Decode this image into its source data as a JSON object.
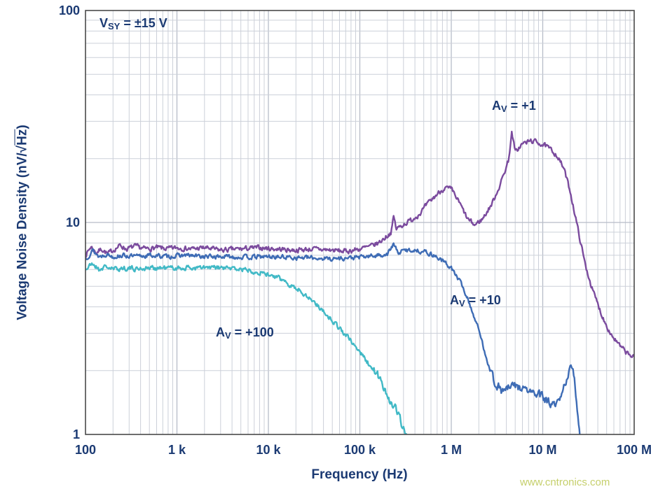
{
  "labels": {
    "supply": {
      "main": "V",
      "sub": "SY",
      "rest": " = ±15 V"
    },
    "av1": {
      "main": "A",
      "sub": "V",
      "rest": " = +1"
    },
    "av10": {
      "main": "A",
      "sub": "V",
      "rest": " = +10"
    },
    "av100": {
      "main": "A",
      "sub": "V",
      "rest": " = +100"
    },
    "ylabel": {
      "pre": "Voltage Noise Density (nV/√",
      "over": "Hz",
      "post": ")"
    },
    "xlabel": "Frequency (Hz)",
    "watermark": "www.cntronics.com"
  },
  "colors": {
    "axis_text": "#1b3a73",
    "grid_minor": "#ccd0d9",
    "grid_major": "#b7bcc8",
    "frame": "#4a4a4a",
    "watermark": "#c5cf6b",
    "series_av1": "#7b4b9e",
    "series_av10": "#3e6cb5",
    "series_av100": "#41b9c6"
  },
  "chart_data": {
    "type": "line",
    "title": "",
    "xlabel": "Frequency (Hz)",
    "ylabel": "Voltage Noise Density (nV/√Hz)",
    "annotation": "VSY = ±15 V",
    "x_scale": "log",
    "y_scale": "log",
    "xlim": [
      100,
      100000000
    ],
    "ylim": [
      1,
      100
    ],
    "grid": true,
    "legend": "inline-labels",
    "x_ticks": [
      {
        "value": 100,
        "label": "100"
      },
      {
        "value": 1000,
        "label": "1 k"
      },
      {
        "value": 10000,
        "label": "10 k"
      },
      {
        "value": 100000,
        "label": "100 k"
      },
      {
        "value": 1000000,
        "label": "1 M"
      },
      {
        "value": 10000000,
        "label": "10 M"
      },
      {
        "value": 100000000,
        "label": "100 M"
      }
    ],
    "y_ticks": [
      {
        "value": 1,
        "label": "1"
      },
      {
        "value": 10,
        "label": "10"
      },
      {
        "value": 100,
        "label": "100"
      }
    ],
    "series": [
      {
        "name": "AV = +1",
        "color": "#7b4b9e",
        "seed": 7,
        "noise": 0.01,
        "points": [
          [
            100,
            7.0
          ],
          [
            115,
            7.7
          ],
          [
            130,
            7.2
          ],
          [
            150,
            7.5
          ],
          [
            175,
            7.1
          ],
          [
            200,
            7.4
          ],
          [
            240,
            7.8
          ],
          [
            280,
            7.5
          ],
          [
            350,
            7.7
          ],
          [
            450,
            7.5
          ],
          [
            600,
            7.6
          ],
          [
            800,
            7.5
          ],
          [
            1000,
            7.6
          ],
          [
            1500,
            7.5
          ],
          [
            2000,
            7.6
          ],
          [
            3000,
            7.4
          ],
          [
            5000,
            7.5
          ],
          [
            8000,
            7.6
          ],
          [
            12000,
            7.5
          ],
          [
            20000,
            7.4
          ],
          [
            30000,
            7.5
          ],
          [
            50000,
            7.4
          ],
          [
            70000,
            7.3
          ],
          [
            100000,
            7.5
          ],
          [
            130000,
            7.7
          ],
          [
            160000,
            8.0
          ],
          [
            190000,
            8.5
          ],
          [
            220000,
            9.0
          ],
          [
            235000,
            10.7
          ],
          [
            250000,
            9.3
          ],
          [
            300000,
            9.8
          ],
          [
            370000,
            10.3
          ],
          [
            450000,
            11.0
          ],
          [
            550000,
            12.2
          ],
          [
            700000,
            13.6
          ],
          [
            850000,
            14.6
          ],
          [
            1000000,
            14.3
          ],
          [
            1200000,
            12.6
          ],
          [
            1500000,
            10.4
          ],
          [
            1800000,
            9.7
          ],
          [
            2200000,
            10.4
          ],
          [
            2800000,
            12.3
          ],
          [
            3500000,
            15.5
          ],
          [
            4200000,
            19.5
          ],
          [
            4600000,
            26.5
          ],
          [
            5000000,
            21.5
          ],
          [
            6000000,
            23.5
          ],
          [
            7500000,
            24.3
          ],
          [
            9000000,
            23.8
          ],
          [
            11000000,
            22.8
          ],
          [
            14000000,
            21.0
          ],
          [
            17000000,
            18.0
          ],
          [
            20000000,
            14.0
          ],
          [
            24000000,
            9.5
          ],
          [
            29000000,
            6.4
          ],
          [
            35000000,
            4.8
          ],
          [
            45000000,
            3.6
          ],
          [
            55000000,
            3.0
          ],
          [
            70000000,
            2.6
          ],
          [
            85000000,
            2.4
          ],
          [
            100000000,
            2.3
          ]
        ]
      },
      {
        "name": "AV = +10",
        "color": "#3e6cb5",
        "seed": 13,
        "noise": 0.009,
        "points": [
          [
            100,
            6.7
          ],
          [
            120,
            7.4
          ],
          [
            140,
            6.9
          ],
          [
            170,
            7.1
          ],
          [
            200,
            6.9
          ],
          [
            250,
            7.0
          ],
          [
            350,
            6.9
          ],
          [
            500,
            7.0
          ],
          [
            800,
            6.9
          ],
          [
            1200,
            7.0
          ],
          [
            2000,
            6.9
          ],
          [
            3500,
            6.9
          ],
          [
            6000,
            6.85
          ],
          [
            10000,
            6.9
          ],
          [
            18000,
            6.85
          ],
          [
            30000,
            6.8
          ],
          [
            50000,
            6.75
          ],
          [
            80000,
            6.8
          ],
          [
            120000,
            6.9
          ],
          [
            160000,
            7.0
          ],
          [
            200000,
            7.1
          ],
          [
            235000,
            7.9
          ],
          [
            260000,
            7.2
          ],
          [
            320000,
            7.4
          ],
          [
            400000,
            7.4
          ],
          [
            500000,
            7.3
          ],
          [
            650000,
            7.0
          ],
          [
            800000,
            6.6
          ],
          [
            1000000,
            6.1
          ],
          [
            1300000,
            5.1
          ],
          [
            1600000,
            4.1
          ],
          [
            2000000,
            3.1
          ],
          [
            2500000,
            2.2
          ],
          [
            3000000,
            1.75
          ],
          [
            3600000,
            1.6
          ],
          [
            4200000,
            1.65
          ],
          [
            5000000,
            1.7
          ],
          [
            6000000,
            1.65
          ],
          [
            7000000,
            1.6
          ],
          [
            8500000,
            1.55
          ],
          [
            10000000,
            1.5
          ],
          [
            12000000,
            1.4
          ],
          [
            14000000,
            1.35
          ],
          [
            16000000,
            1.5
          ],
          [
            18000000,
            1.8
          ],
          [
            20000000,
            2.1
          ],
          [
            21500000,
            2.0
          ],
          [
            23000000,
            1.55
          ],
          [
            25000000,
            1.1
          ],
          [
            26500000,
            0.8
          ]
        ]
      },
      {
        "name": "AV = +100",
        "color": "#41b9c6",
        "seed": 21,
        "noise": 0.01,
        "points": [
          [
            100,
            6.0
          ],
          [
            120,
            6.4
          ],
          [
            140,
            6.0
          ],
          [
            170,
            6.2
          ],
          [
            200,
            6.0
          ],
          [
            260,
            6.1
          ],
          [
            350,
            6.05
          ],
          [
            500,
            6.1
          ],
          [
            800,
            6.1
          ],
          [
            1200,
            6.1
          ],
          [
            2000,
            6.1
          ],
          [
            3000,
            6.1
          ],
          [
            4500,
            6.05
          ],
          [
            6500,
            5.95
          ],
          [
            9000,
            5.75
          ],
          [
            13000,
            5.45
          ],
          [
            18000,
            5.05
          ],
          [
            25000,
            4.6
          ],
          [
            35000,
            4.05
          ],
          [
            50000,
            3.45
          ],
          [
            70000,
            2.95
          ],
          [
            100000,
            2.45
          ],
          [
            130000,
            2.1
          ],
          [
            160000,
            1.85
          ],
          [
            200000,
            1.55
          ],
          [
            250000,
            1.3
          ],
          [
            300000,
            1.08
          ],
          [
            340000,
            0.92
          ]
        ]
      }
    ]
  }
}
